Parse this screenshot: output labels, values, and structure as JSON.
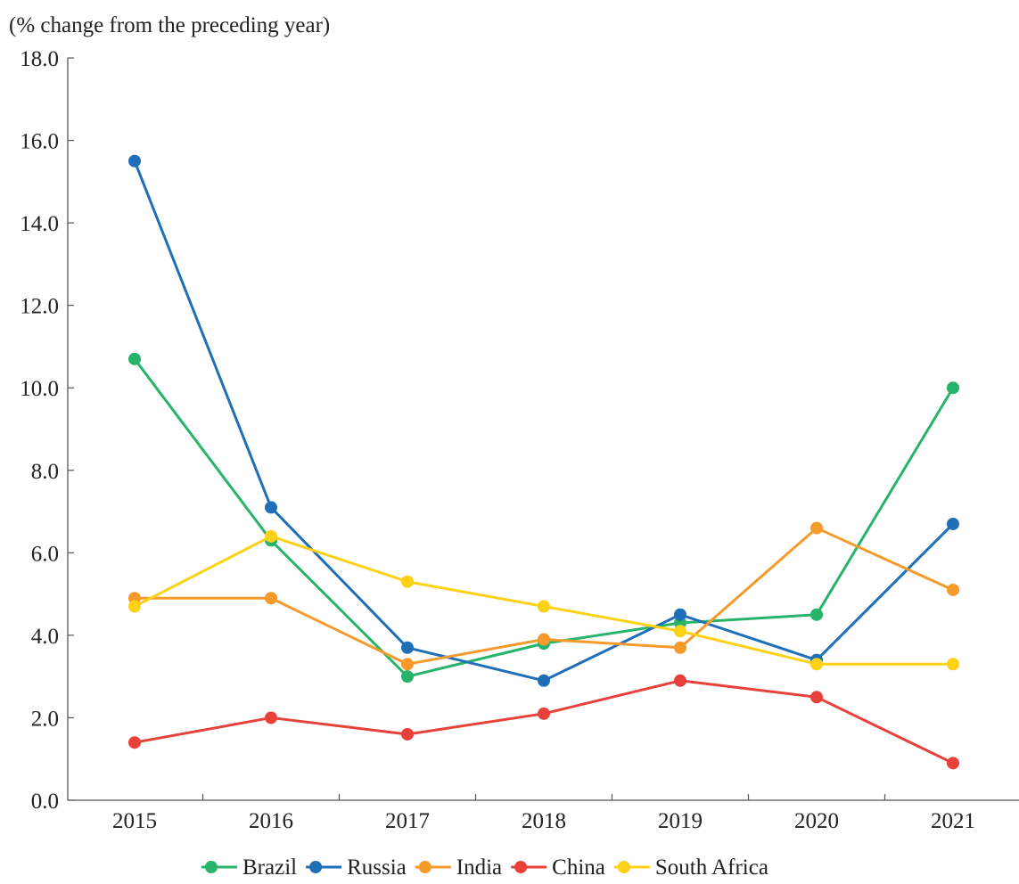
{
  "chart_data": {
    "type": "line",
    "title": "",
    "unit_label": "(% change from the preceding year)",
    "xlabel": "",
    "ylabel": "",
    "categories": [
      "2015",
      "2016",
      "2017",
      "2018",
      "2019",
      "2020",
      "2021"
    ],
    "ylim": [
      0,
      18
    ],
    "yticks": [
      "0.0",
      "2.0",
      "4.0",
      "6.0",
      "8.0",
      "10.0",
      "12.0",
      "14.0",
      "16.0",
      "18.0"
    ],
    "grid": false,
    "legend_position": "bottom",
    "series": [
      {
        "name": "Brazil",
        "color": "#27b36a",
        "values": [
          10.7,
          6.3,
          3.0,
          3.8,
          4.3,
          4.5,
          10.0
        ]
      },
      {
        "name": "Russia",
        "color": "#1f6fb8",
        "values": [
          15.5,
          7.1,
          3.7,
          2.9,
          4.5,
          3.4,
          6.7
        ]
      },
      {
        "name": "India",
        "color": "#f59a2b",
        "values": [
          4.9,
          4.9,
          3.3,
          3.9,
          3.7,
          6.6,
          5.1
        ]
      },
      {
        "name": "China",
        "color": "#e8413a",
        "values": [
          1.4,
          2.0,
          1.6,
          2.1,
          2.9,
          2.5,
          0.9
        ]
      },
      {
        "name": "South Africa",
        "color": "#fcd116",
        "values": [
          4.7,
          6.4,
          5.3,
          4.7,
          4.1,
          3.3,
          3.3
        ]
      }
    ]
  }
}
